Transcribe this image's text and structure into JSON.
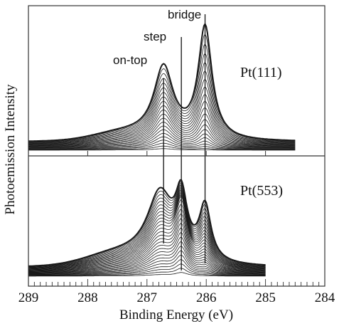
{
  "chart_data": {
    "type": "line",
    "xlabel": "Binding Energy (eV)",
    "ylabel": "Photoemission Intensity",
    "xlim": [
      289,
      284
    ],
    "x_reversed": true,
    "x_ticks": [
      "289",
      "288",
      "287",
      "286",
      "285",
      "284"
    ],
    "peak_markers": [
      {
        "label": "on-top",
        "x": 286.72
      },
      {
        "label": "step",
        "x": 286.42
      },
      {
        "label": "bridge",
        "x": 286.02
      }
    ],
    "panels": [
      {
        "name": "Pt(111)",
        "color": "#d42020",
        "spectra_count": 22,
        "x_range": [
          289.0,
          284.5
        ],
        "final_spectrum_peaks": [
          {
            "x": 286.72,
            "relative_height": 0.63
          },
          {
            "x": 286.02,
            "relative_height": 1.0
          }
        ]
      },
      {
        "name": "Pt(553)",
        "color": "#2a3fb0",
        "spectra_count": 28,
        "x_range": [
          289.0,
          285.0
        ],
        "final_spectrum_peaks": [
          {
            "x": 286.75,
            "relative_height": 0.65
          },
          {
            "x": 286.42,
            "relative_height": 0.64
          },
          {
            "x": 286.02,
            "relative_height": 0.6
          }
        ]
      }
    ]
  }
}
